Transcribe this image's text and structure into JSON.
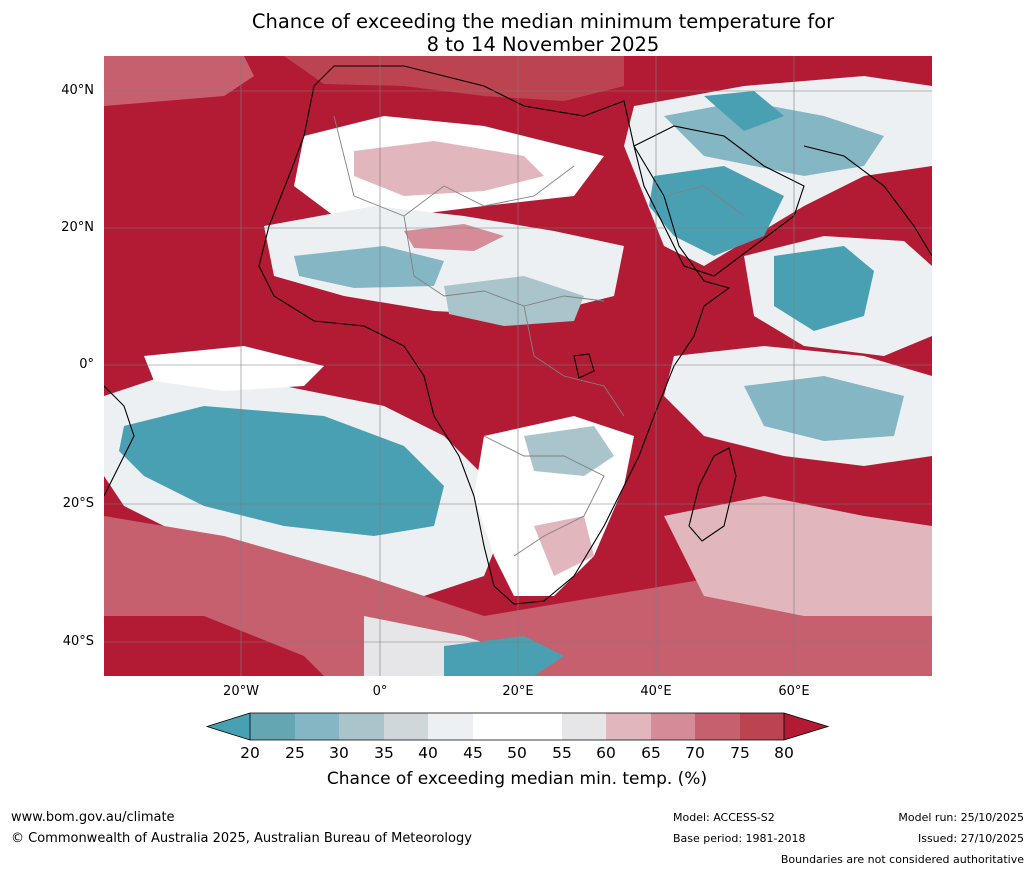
{
  "header": {
    "title_line1": "Chance of exceeding the median minimum temperature for",
    "title_line2": "8 to 14 November 2025"
  },
  "axes": {
    "lat_labels": [
      "40°N",
      "20°N",
      "0°",
      "20°S",
      "40°S"
    ],
    "lon_labels": [
      "20°W",
      "0°",
      "20°E",
      "40°E",
      "60°E"
    ]
  },
  "colorbar": {
    "ticks": [
      "20",
      "25",
      "30",
      "35",
      "40",
      "45",
      "50",
      "55",
      "60",
      "65",
      "70",
      "75",
      "80"
    ],
    "title": "Chance of exceeding median min. temp. (%)",
    "colors": {
      "under": "#49a0b2",
      "c20": "#65a6b3",
      "c25": "#85b6c3",
      "c30": "#a9c5cb",
      "c35": "#d0d7da",
      "c40": "#ecf0f2",
      "c45": "#ffffff",
      "c50": "#ffffff",
      "c55": "#e6e6e8",
      "c60": "#e2b6bd",
      "c65": "#d68c98",
      "c70": "#c7606e",
      "c75": "#bc4450",
      "over": "#b31b35"
    }
  },
  "footer": {
    "url": "www.bom.gov.au/climate",
    "copyright": "© Commonwealth of Australia 2025, Australian Bureau of Meteorology",
    "model": "Model: ACCESS-S2",
    "base_period": "Base period: 1981-2018",
    "model_run": "Model run: 25/10/2025",
    "issued": "Issued: 27/10/2025",
    "disclaimer": "Boundaries are not considered authoritative"
  }
}
